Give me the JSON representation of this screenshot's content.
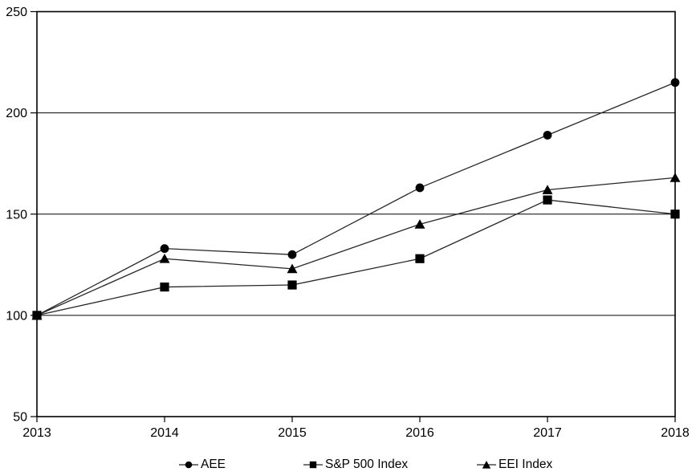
{
  "chart": {
    "background": "#ffffff",
    "text_color": "#000000",
    "frame_color": "#000000",
    "grid_color": "#000000",
    "line_color": "#262626",
    "marker_color": "#000000"
  },
  "chart_data": {
    "type": "line",
    "title": "",
    "xlabel": "",
    "ylabel": "",
    "x_labels": [
      "2013",
      "2014",
      "2015",
      "2016",
      "2017",
      "2018"
    ],
    "y_ticks": [
      50,
      100,
      150,
      200,
      250
    ],
    "ylim": [
      50,
      250
    ],
    "grid": "horizontal",
    "legend_position": "bottom",
    "series": [
      {
        "name": "AEE",
        "marker": "circle",
        "values": [
          100,
          133,
          130,
          163,
          189,
          215
        ]
      },
      {
        "name": "S&P 500 Index",
        "marker": "square",
        "values": [
          100,
          114,
          115,
          128,
          157,
          150
        ]
      },
      {
        "name": "EEI Index",
        "marker": "triangle",
        "values": [
          100,
          128,
          123,
          145,
          162,
          168
        ]
      }
    ]
  }
}
